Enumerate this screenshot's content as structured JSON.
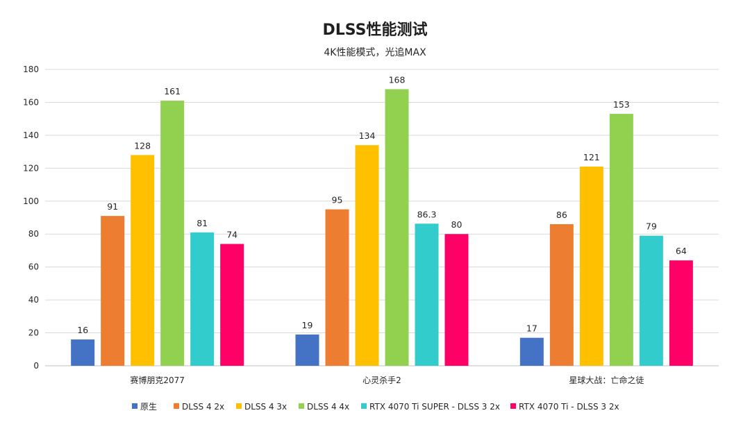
{
  "chart_data": {
    "type": "bar",
    "title": "DLSS性能测试",
    "subtitle": "4K性能模式，光追MAX",
    "xlabel": "",
    "ylabel": "",
    "ylim": [
      0,
      180
    ],
    "yticks": [
      0,
      20,
      40,
      60,
      80,
      100,
      120,
      140,
      160,
      180
    ],
    "grid": true,
    "legend_position": "bottom",
    "categories": [
      "赛博朋克2077",
      "心灵杀手2",
      "星球大战：亡命之徒"
    ],
    "series": [
      {
        "name": "原生",
        "color": "#4472c4",
        "values": [
          16,
          19,
          17
        ],
        "labels": [
          "16",
          "19",
          "17"
        ]
      },
      {
        "name": "DLSS 4 2x",
        "color": "#ed7d31",
        "values": [
          91,
          95,
          86
        ],
        "labels": [
          "91",
          "95",
          "86"
        ]
      },
      {
        "name": "DLSS 4 3x",
        "color": "#ffc000",
        "values": [
          128,
          134,
          121
        ],
        "labels": [
          "128",
          "134",
          "121"
        ]
      },
      {
        "name": "DLSS 4 4x",
        "color": "#92d050",
        "values": [
          161,
          168,
          153
        ],
        "labels": [
          "161",
          "168",
          "153"
        ]
      },
      {
        "name": "RTX 4070 Ti SUPER - DLSS 3 2x",
        "color": "#33cccc",
        "values": [
          81,
          86.3,
          79
        ],
        "labels": [
          "81",
          "86.3",
          "79"
        ]
      },
      {
        "name": "RTX 4070 Ti - DLSS 3 2x",
        "color": "#ff0066",
        "values": [
          74,
          80,
          64
        ],
        "labels": [
          "74",
          "80",
          "64"
        ]
      }
    ]
  }
}
